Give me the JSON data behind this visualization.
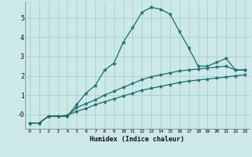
{
  "xlabel": "Humidex (Indice chaleur)",
  "bg_color": "#cce8e8",
  "grid_color": "#aacece",
  "line_color": "#1a6b6b",
  "x_ticks": [
    0,
    1,
    2,
    3,
    4,
    5,
    6,
    7,
    8,
    9,
    10,
    11,
    12,
    13,
    14,
    15,
    16,
    17,
    18,
    19,
    20,
    21,
    22,
    23
  ],
  "y_ticks": [
    0,
    1,
    2,
    3,
    4,
    5
  ],
  "y_tick_labels": [
    "-0",
    "1",
    "2",
    "3",
    "4",
    "5"
  ],
  "ylim": [
    -0.75,
    5.85
  ],
  "xlim": [
    -0.5,
    23.5
  ],
  "series1_y": [
    -0.45,
    -0.45,
    -0.1,
    -0.1,
    -0.1,
    0.5,
    1.1,
    1.5,
    2.3,
    2.65,
    3.75,
    4.5,
    5.3,
    5.55,
    5.45,
    5.2,
    4.3,
    3.45,
    2.5,
    2.5,
    2.7,
    2.9,
    2.3,
    2.3
  ],
  "series2_y": [
    -0.45,
    -0.45,
    -0.1,
    -0.1,
    -0.1,
    0.35,
    0.55,
    0.75,
    1.0,
    1.2,
    1.4,
    1.6,
    1.8,
    1.95,
    2.05,
    2.15,
    2.25,
    2.3,
    2.35,
    2.4,
    2.45,
    2.5,
    2.3,
    2.3
  ],
  "series3_y": [
    -0.45,
    -0.45,
    -0.1,
    -0.1,
    -0.05,
    0.15,
    0.3,
    0.5,
    0.65,
    0.8,
    0.95,
    1.1,
    1.25,
    1.35,
    1.45,
    1.55,
    1.65,
    1.72,
    1.78,
    1.83,
    1.88,
    1.93,
    2.0,
    2.05
  ]
}
